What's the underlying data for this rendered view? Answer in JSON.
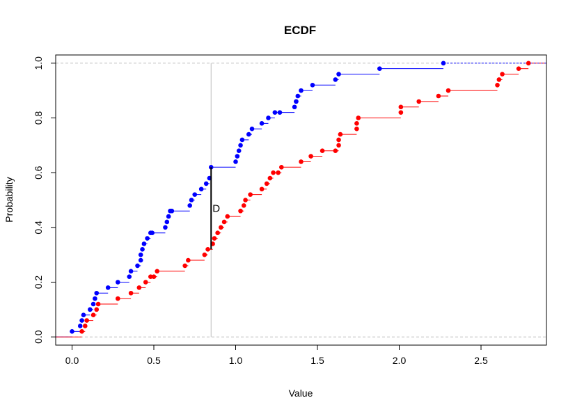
{
  "chart_data": {
    "type": "line",
    "subtype": "step-ecdf",
    "title": "ECDF",
    "xlabel": "Value",
    "ylabel": "Probability",
    "xlim": [
      -0.1,
      2.9
    ],
    "ylim": [
      -0.03,
      1.03
    ],
    "xticks": [
      0.0,
      0.5,
      1.0,
      1.5,
      2.0,
      2.5
    ],
    "xtick_labels": [
      "0.0",
      "0.5",
      "1.0",
      "1.5",
      "2.0",
      "2.5"
    ],
    "yticks": [
      0.0,
      0.2,
      0.4,
      0.6,
      0.8,
      1.0
    ],
    "ytick_labels": [
      "0.0",
      "0.2",
      "0.4",
      "0.6",
      "0.8",
      "1.0"
    ],
    "grid": false,
    "reference_lines": [
      {
        "orientation": "horizontal",
        "value": 0.0,
        "style": "dashed",
        "color": "#bebebe"
      },
      {
        "orientation": "horizontal",
        "value": 1.0,
        "style": "dashed",
        "color": "#bebebe"
      },
      {
        "orientation": "vertical",
        "value": 0.85,
        "style": "solid",
        "color": "#bebebe"
      }
    ],
    "annotation": {
      "text": "D",
      "x": 0.85,
      "y_from": 0.32,
      "y_to": 0.62
    },
    "series": [
      {
        "color": "#0000ff",
        "x": [
          0.0,
          0.05,
          0.06,
          0.07,
          0.11,
          0.13,
          0.14,
          0.15,
          0.22,
          0.28,
          0.35,
          0.36,
          0.4,
          0.42,
          0.42,
          0.43,
          0.44,
          0.46,
          0.48,
          0.49,
          0.57,
          0.58,
          0.59,
          0.6,
          0.61,
          0.72,
          0.73,
          0.75,
          0.79,
          0.82,
          0.84,
          0.85,
          1.0,
          1.01,
          1.02,
          1.03,
          1.04,
          1.08,
          1.1,
          1.16,
          1.2,
          1.24,
          1.27,
          1.36,
          1.37,
          1.37,
          1.38,
          1.4,
          1.47,
          1.61,
          1.63,
          1.88,
          2.27
        ],
        "y": [
          0.02,
          0.04,
          0.06,
          0.08,
          0.1,
          0.12,
          0.14,
          0.16,
          0.18,
          0.2,
          0.22,
          0.24,
          0.26,
          0.28,
          0.3,
          0.32,
          0.34,
          0.36,
          0.38,
          0.38,
          0.4,
          0.42,
          0.44,
          0.46,
          0.46,
          0.48,
          0.5,
          0.52,
          0.54,
          0.56,
          0.58,
          0.62,
          0.64,
          0.66,
          0.68,
          0.7,
          0.72,
          0.74,
          0.76,
          0.78,
          0.8,
          0.82,
          0.82,
          0.84,
          0.86,
          0.86,
          0.88,
          0.9,
          0.92,
          0.94,
          0.96,
          0.98,
          1.0
        ]
      },
      {
        "color": "#ff0000",
        "x": [
          0.06,
          0.08,
          0.09,
          0.13,
          0.15,
          0.16,
          0.28,
          0.36,
          0.41,
          0.45,
          0.48,
          0.5,
          0.52,
          0.69,
          0.71,
          0.81,
          0.83,
          0.86,
          0.87,
          0.89,
          0.91,
          0.93,
          0.95,
          1.03,
          1.05,
          1.06,
          1.09,
          1.16,
          1.19,
          1.21,
          1.23,
          1.26,
          1.28,
          1.4,
          1.46,
          1.53,
          1.61,
          1.63,
          1.63,
          1.64,
          1.74,
          1.74,
          1.75,
          2.01,
          2.01,
          2.12,
          2.24,
          2.3,
          2.6,
          2.61,
          2.63,
          2.73,
          2.79
        ],
        "y": [
          0.02,
          0.04,
          0.06,
          0.08,
          0.1,
          0.12,
          0.14,
          0.16,
          0.18,
          0.2,
          0.22,
          0.22,
          0.24,
          0.26,
          0.28,
          0.3,
          0.32,
          0.34,
          0.36,
          0.38,
          0.4,
          0.42,
          0.44,
          0.46,
          0.48,
          0.5,
          0.52,
          0.54,
          0.56,
          0.58,
          0.6,
          0.6,
          0.62,
          0.64,
          0.66,
          0.68,
          0.68,
          0.7,
          0.72,
          0.74,
          0.76,
          0.78,
          0.8,
          0.82,
          0.84,
          0.86,
          0.88,
          0.9,
          0.92,
          0.94,
          0.96,
          0.98,
          1.0
        ]
      }
    ]
  }
}
